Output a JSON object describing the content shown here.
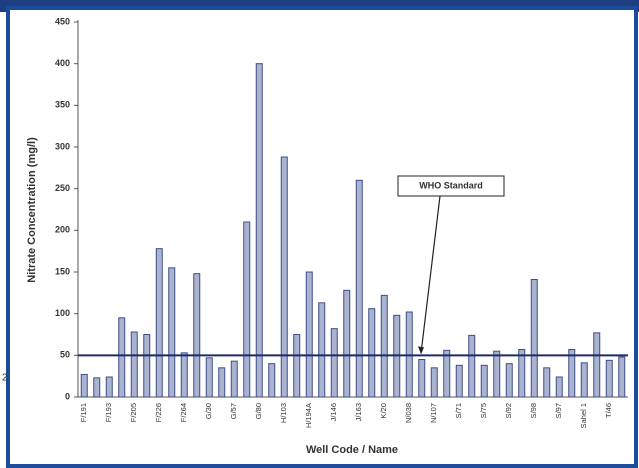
{
  "chart_data": {
    "type": "bar",
    "y_label": "Nitrate Concentration (mg/l)",
    "x_label": "Well Code / Name",
    "categories": [
      "F/191",
      null,
      "F/193",
      null,
      "F/205",
      null,
      "F/226",
      null,
      "F/264",
      null,
      "G/30",
      null,
      "G/57",
      null,
      "G/80",
      null,
      "H/103",
      null,
      "H/194A",
      null,
      "J/146",
      null,
      "J/163",
      null,
      "K/20",
      null,
      "N/038",
      null,
      "N/107",
      null,
      "S/71",
      null,
      "S/75",
      null,
      "S/92",
      null,
      "S/98",
      null,
      "S/97",
      null,
      "Sahel 1",
      null,
      "T/46",
      null
    ],
    "values": [
      27,
      23,
      24,
      95,
      78,
      75,
      178,
      155,
      53,
      148,
      47,
      35,
      43,
      210,
      400,
      40,
      288,
      75,
      150,
      113,
      82,
      128,
      260,
      106,
      122,
      98,
      102,
      45,
      35,
      56,
      38,
      74,
      38,
      55,
      40,
      57,
      141,
      35,
      24,
      57,
      41,
      77,
      44,
      48
    ],
    "color": "#aab3cf",
    "edge_color": "#3e4d88",
    "ylim": [
      0,
      450
    ],
    "yticks": [
      0,
      50,
      100,
      150,
      200,
      250,
      300,
      350,
      400,
      450
    ],
    "grid": false,
    "reference_line": {
      "label": "WHO Standard",
      "value": 50,
      "color": "#1c2c6a"
    },
    "side_fragment": "2"
  }
}
